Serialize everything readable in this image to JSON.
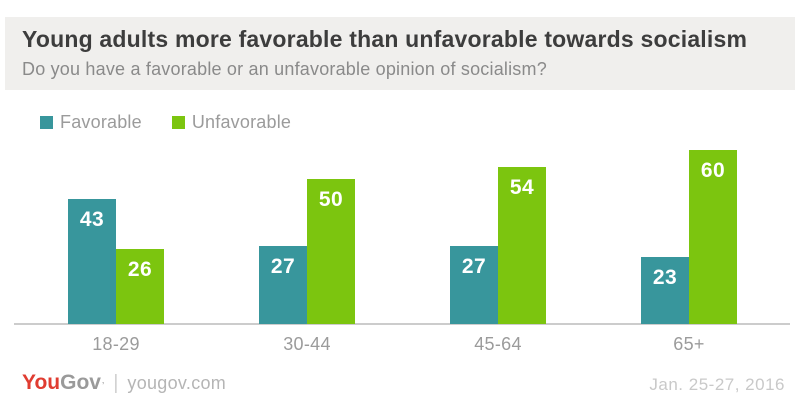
{
  "header": {
    "title": "Young adults more favorable than unfavorable towards socialism",
    "subtitle": "Do you have a favorable or an unfavorable opinion of socialism?"
  },
  "colors": {
    "favorable_teal": "#38969c",
    "unfavorable_green": "#7cc50f",
    "panel_background": "#f0efed",
    "axis_line": "#cccccc",
    "label_gray": "#9b9b9b",
    "logo_red": "#e03c31"
  },
  "chart_data": {
    "type": "bar",
    "categories": [
      "18-29",
      "30-44",
      "45-64",
      "65+"
    ],
    "series": [
      {
        "name": "Favorable",
        "color": "#38969c",
        "values": [
          43,
          27,
          27,
          23
        ]
      },
      {
        "name": "Unfavorable",
        "color": "#7cc50f",
        "values": [
          26,
          50,
          54,
          60
        ]
      }
    ],
    "title": "Young adults more favorable than unfavorable towards socialism",
    "subtitle": "Do you have a favorable or an unfavorable opinion of socialism?",
    "xlabel": "",
    "ylabel": "",
    "ylim": [
      0,
      65
    ],
    "value_labels": true,
    "grid": false,
    "legend_position": "top-left"
  },
  "legend": [
    {
      "label": "Favorable",
      "color": "#38969c"
    },
    {
      "label": "Unfavorable",
      "color": "#7cc50f"
    }
  ],
  "footer": {
    "logo_you": "You",
    "logo_gov": "Gov",
    "logo_tm": "’",
    "divider": "|",
    "domain": "yougov.com",
    "date": "Jan. 25-27, 2016"
  }
}
